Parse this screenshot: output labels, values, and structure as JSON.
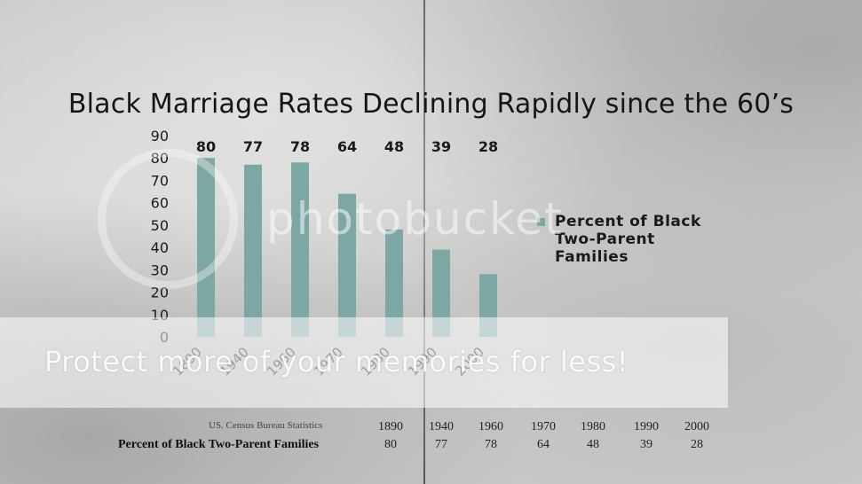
{
  "title": "Black Marriage Rates Declining Rapidly since the 60’s",
  "chart_data": {
    "type": "bar",
    "categories": [
      "1890",
      "1940",
      "1960",
      "1970",
      "1980",
      "1990",
      "2000"
    ],
    "values": [
      80,
      77,
      78,
      64,
      48,
      39,
      28
    ],
    "series": [
      {
        "name": "Percent of Black Two-Parent Families",
        "values": [
          80,
          77,
          78,
          64,
          48,
          39,
          28
        ]
      }
    ],
    "yticks": [
      "0",
      "10",
      "20",
      "30",
      "40",
      "50",
      "60",
      "70",
      "80",
      "90"
    ],
    "ylim": [
      0,
      90
    ],
    "bar_color": "#7da7a4",
    "legend": {
      "label": "Percent of Black Two-Parent Families",
      "position": "right"
    },
    "grid": false
  },
  "source_table": {
    "source_label": "US. Census Bureau Statistics",
    "row_label": "Percent of Black Two-Parent Families",
    "years": [
      "1890",
      "1940",
      "1960",
      "1970",
      "1980",
      "1990",
      "2000"
    ],
    "values": [
      "80",
      "77",
      "78",
      "64",
      "48",
      "39",
      "28"
    ]
  },
  "watermark": {
    "logo": "photobucket",
    "banner": "Protect more of your memories for less!"
  }
}
